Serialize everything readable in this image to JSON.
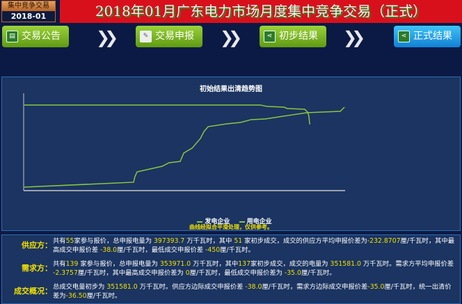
{
  "badge": {
    "label": "集中竞争交易",
    "period": "2018-01"
  },
  "title": "2018年01月广东电力市场月度集中竞争交易（正式）",
  "steps": [
    {
      "label": "交易公告",
      "icon": "notice-icon"
    },
    {
      "label": "交易申报",
      "icon": "document-edit-icon"
    },
    {
      "label": "初步结果",
      "icon": "share-icon"
    },
    {
      "label": "正式结果",
      "icon": "share-icon"
    }
  ],
  "step_arrow": "❯❯",
  "chart_data": {
    "type": "line",
    "title": "初始结果出清趋势图",
    "xlabel": "",
    "ylabel": "",
    "grid": false,
    "legend_placement": "bottom",
    "note": "曲线经拟合平滑处理，仅供参考。",
    "series": [
      {
        "name": "发电企业",
        "color": "#8dc63f",
        "points": [
          [
            0.2,
            3.6
          ],
          [
            34.2,
            8.6
          ],
          [
            34.6,
            14.3
          ],
          [
            35.3,
            19.3
          ],
          [
            43.1,
            25
          ],
          [
            45.2,
            28.6
          ],
          [
            48.7,
            30
          ],
          [
            49.8,
            38.6
          ],
          [
            52.4,
            43.6
          ],
          [
            55,
            53.6
          ],
          [
            56.1,
            60.7
          ],
          [
            57.4,
            65.7
          ],
          [
            63.2,
            68.6
          ],
          [
            67.5,
            70
          ],
          [
            70.8,
            72.9
          ],
          [
            75.1,
            73.6
          ],
          [
            79.4,
            75.7
          ],
          [
            83.8,
            77.9
          ],
          [
            88.1,
            80
          ],
          [
            98.5,
            81.4
          ],
          [
            99.8,
            85.7
          ]
        ]
      },
      {
        "name": "用电企业",
        "color": "#8dc63f",
        "points": [
          [
            0.2,
            87.9
          ],
          [
            73.6,
            87.9
          ],
          [
            75.8,
            86.4
          ],
          [
            81,
            85.7
          ],
          [
            82,
            84.3
          ],
          [
            87.4,
            83.6
          ],
          [
            88.3,
            80.7
          ],
          [
            88.7,
            77.1
          ],
          [
            89,
            67.9
          ]
        ]
      }
    ]
  },
  "info": {
    "supply": {
      "label": "供应方：",
      "parts": [
        "共有",
        "55",
        "家参与报价，总申报电量为 ",
        "397393.7",
        " 万千瓦时，其中 ",
        "51",
        " 家初步成交，成交的供应方平均申报价差为",
        "-232.8707",
        "厘/千瓦时，其中最高成交申报价差 ",
        "-38.0",
        "厘/千瓦时，最低成交申报价差 ",
        "-450",
        "厘/千瓦时。"
      ]
    },
    "demand": {
      "label": "需求方：",
      "parts": [
        "共有",
        "139",
        " 家参与报价，总申报电量为 ",
        "353971.0",
        " 万千瓦时，其中",
        "137",
        "家初步成交，成交的电量为 ",
        "351581.0",
        " 万千瓦时。需求方平均申报价差 ",
        "-2.3757",
        "厘/千瓦时，其中最高成交申报价差为 ",
        "0",
        "厘/千瓦时，最低成交申报价差为 ",
        "-35.0",
        "厘/千瓦时。"
      ]
    },
    "deal": {
      "label": "成交概况：",
      "parts": [
        "总成交电量初步为 ",
        "351581.0",
        " 万千瓦时。供应方边际成交申报价差 ",
        "-38.0",
        "厘/千瓦时，需求方边际成交申报价差",
        "-35.0",
        "厘/千瓦时，统一出清价差为",
        "-36.50",
        "厘/千瓦时。"
      ]
    }
  }
}
